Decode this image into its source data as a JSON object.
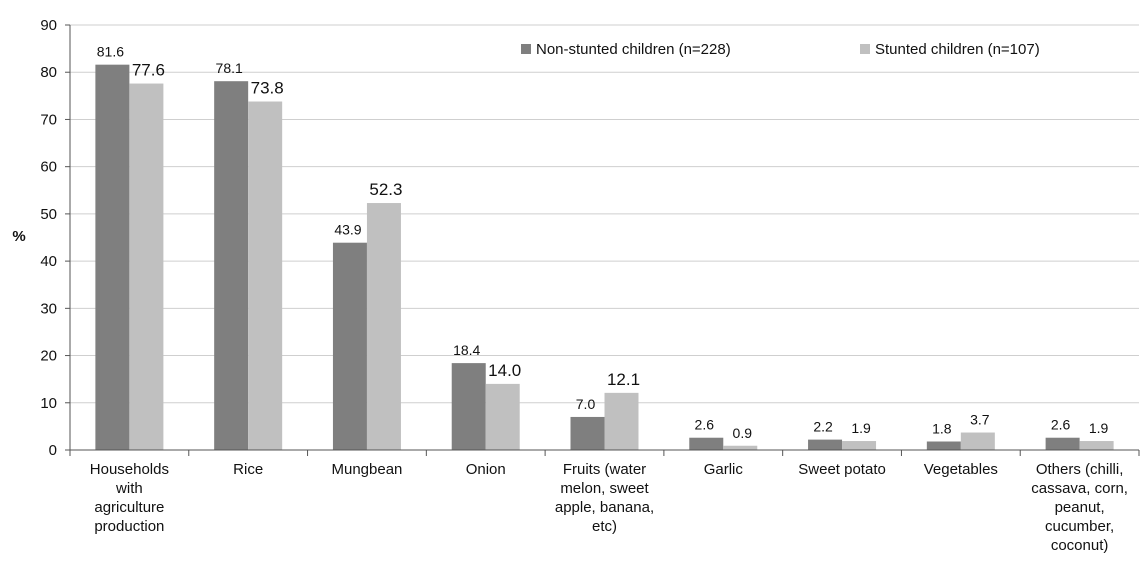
{
  "chart_data": {
    "type": "bar",
    "title": "",
    "xlabel": "",
    "ylabel": "%",
    "ylim": [
      0,
      90
    ],
    "y_ticks": [
      "0",
      "10",
      "20",
      "30",
      "40",
      "50",
      "60",
      "70",
      "80",
      "90"
    ],
    "grid": true,
    "legend_position": "top-right",
    "categories": [
      "Households with agriculture production",
      "Rice",
      "Mungbean",
      "Onion",
      "Fruits (water melon, sweet apple, banana, etc)",
      "Garlic",
      "Sweet potato",
      "Vegetables",
      "Others (chilli, cassava, corn, peanut, cucumber, coconut)"
    ],
    "category_lines": [
      [
        "Households",
        "with",
        "agriculture",
        "production"
      ],
      [
        "Rice"
      ],
      [
        "Mungbean"
      ],
      [
        "Onion"
      ],
      [
        "Fruits (water",
        "melon, sweet",
        "apple, banana,",
        "etc)"
      ],
      [
        "Garlic"
      ],
      [
        "Sweet potato"
      ],
      [
        "Vegetables"
      ],
      [
        "Others (chilli,",
        "cassava, corn,",
        "peanut,",
        "cucumber,",
        "coconut)"
      ]
    ],
    "series": [
      {
        "name": "Non-stunted children (n=228)",
        "color": "#7f7f7f",
        "values": [
          81.6,
          78.1,
          43.9,
          18.4,
          7.0,
          2.6,
          2.2,
          1.8,
          2.6
        ],
        "labels": [
          "81.6",
          "78.1",
          "43.9",
          "18.4",
          "7.0",
          "2.6",
          "2.2",
          "1.8",
          "2.6"
        ]
      },
      {
        "name": "Stunted children (n=107)",
        "color": "#c0c0c0",
        "values": [
          77.6,
          73.8,
          52.3,
          14.0,
          12.1,
          0.9,
          1.9,
          3.7,
          1.9
        ],
        "labels": [
          "77.6",
          "73.8",
          "52.3",
          "14.0",
          "12.1",
          "0.9",
          "1.9",
          "3.7",
          "1.9"
        ]
      }
    ]
  }
}
